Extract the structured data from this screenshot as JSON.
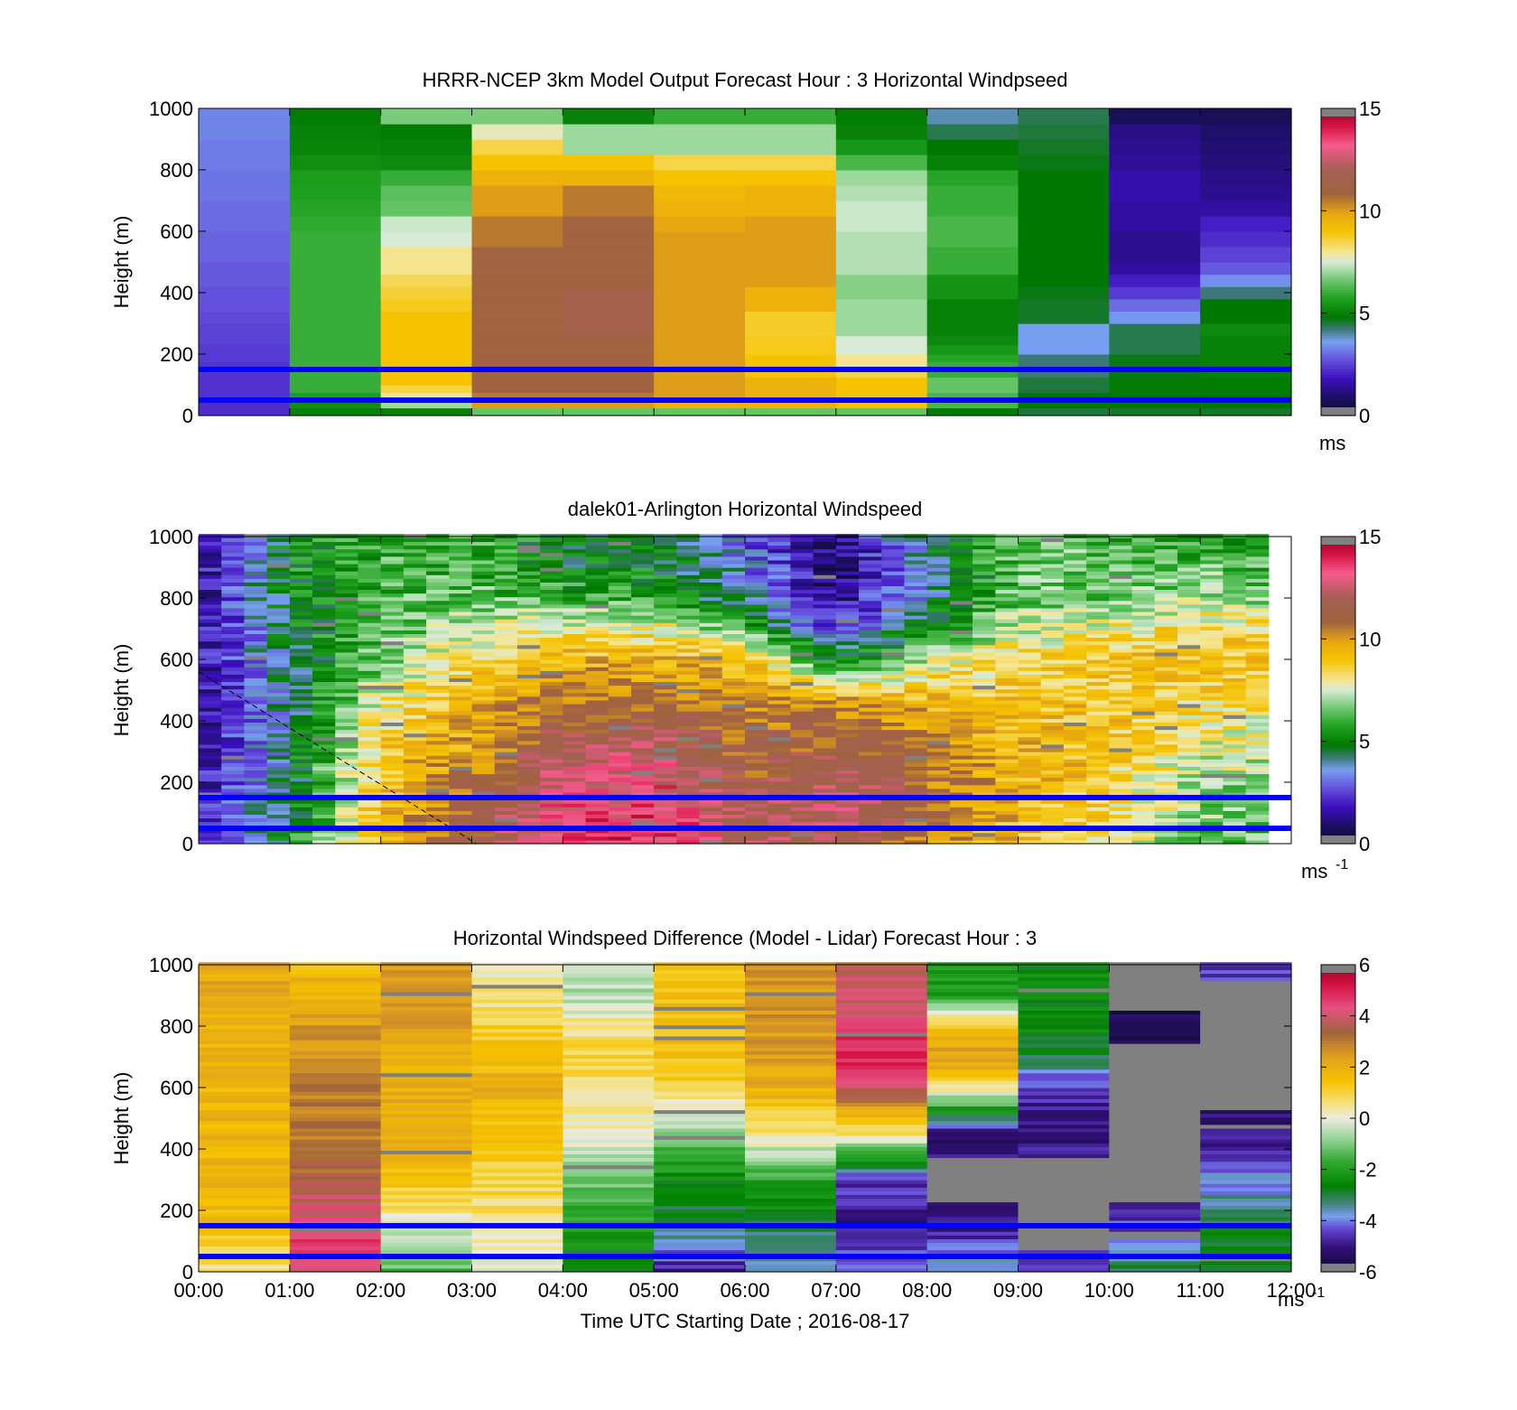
{
  "figure": {
    "xlabel": "Time UTC  Starting Date ; 2016-08-17",
    "x_ticks": [
      "00:00",
      "01:00",
      "02:00",
      "03:00",
      "04:00",
      "05:00",
      "06:00",
      "07:00",
      "08:00",
      "09:00",
      "10:00",
      "11:00",
      "12:00"
    ]
  },
  "chart_data": [
    {
      "type": "heatmap",
      "title": "HRRR-NCEP 3km Model Output   Forecast Hour : 3 Horizontal Windpseed",
      "ylabel": "Height (m)",
      "ylim": [
        0,
        1000
      ],
      "y_ticks": [
        0,
        200,
        400,
        600,
        800,
        1000
      ],
      "xlim_hours": [
        0,
        12
      ],
      "colorbar": {
        "min": 0,
        "max": 15,
        "ticks": [
          0,
          5,
          10,
          15
        ],
        "unit": "ms",
        "unit_sup": ""
      },
      "levels": [
        0,
        25,
        50,
        75,
        100,
        125,
        150,
        175,
        200,
        230,
        260,
        300,
        340,
        380,
        420,
        460,
        500,
        550,
        600,
        650,
        700,
        750,
        800,
        850,
        900,
        950,
        1000
      ],
      "hourly_profiles": [
        [
          2.2,
          2.2,
          2.3,
          2.3,
          2.3,
          2.3,
          2.3,
          2.4,
          2.4,
          2.5,
          2.5,
          2.6,
          2.7,
          2.7,
          2.8,
          2.8,
          2.9,
          2.9,
          3.0,
          3.0,
          3.1,
          3.1,
          3.2,
          3.2,
          3.3,
          3.3
        ],
        [
          5.0,
          5.3,
          5.7,
          6.0,
          6.0,
          6.0,
          6.0,
          6.0,
          6.0,
          6.0,
          6.0,
          6.0,
          6.0,
          6.0,
          6.0,
          6.0,
          6.0,
          6.0,
          5.9,
          5.8,
          5.7,
          5.6,
          5.3,
          5.1,
          5.0,
          4.9
        ],
        [
          5.0,
          7.0,
          8.0,
          8.5,
          9.0,
          9.0,
          9.0,
          9.0,
          9.0,
          9.0,
          9.0,
          9.0,
          8.8,
          8.6,
          8.4,
          8.0,
          8.0,
          7.5,
          7.4,
          6.5,
          6.4,
          6.0,
          5.2,
          5.0,
          4.9,
          6.7
        ],
        [
          6.5,
          10.0,
          10.5,
          11.0,
          11.0,
          11.0,
          11.0,
          11.0,
          11.0,
          11.0,
          11.0,
          11.0,
          11.0,
          11.0,
          11.0,
          11.0,
          11.0,
          10.5,
          10.5,
          10.0,
          10.0,
          9.5,
          9.0,
          8.5,
          7.7,
          6.7
        ],
        [
          6.5,
          10.0,
          10.5,
          11.0,
          11.0,
          11.0,
          11.0,
          11.0,
          11.0,
          11.0,
          11.5,
          11.5,
          11.5,
          11.5,
          11.0,
          11.0,
          11.0,
          11.0,
          11.0,
          10.5,
          10.5,
          9.5,
          9.0,
          7.0,
          7.0,
          5.0
        ],
        [
          6.5,
          9.5,
          10.0,
          10.0,
          10.0,
          10.0,
          10.0,
          10.0,
          10.0,
          10.0,
          10.0,
          10.0,
          10.0,
          10.0,
          10.0,
          10.0,
          10.0,
          10.0,
          9.8,
          9.5,
          9.3,
          9.0,
          8.5,
          7.0,
          7.0,
          6.0
        ],
        [
          6.5,
          9.5,
          9.5,
          9.5,
          9.5,
          9.0,
          9.0,
          9.0,
          8.8,
          8.8,
          8.7,
          8.7,
          9.5,
          9.5,
          10.0,
          10.0,
          10.0,
          10.0,
          10.0,
          9.5,
          9.5,
          9.0,
          8.5,
          7.0,
          7.0,
          6.0
        ],
        [
          6.5,
          9.0,
          9.0,
          9.0,
          9.0,
          8.5,
          8.0,
          8.0,
          7.5,
          7.5,
          7.0,
          7.0,
          7.0,
          6.8,
          6.8,
          7.2,
          7.2,
          7.2,
          7.4,
          7.4,
          7.2,
          7.0,
          6.2,
          5.5,
          5.0,
          4.9
        ],
        [
          4.9,
          6.2,
          6.2,
          6.5,
          6.5,
          6.0,
          6.0,
          5.8,
          5.5,
          5.2,
          5.0,
          5.0,
          5.0,
          5.4,
          5.4,
          6.0,
          6.0,
          6.2,
          6.2,
          6.0,
          6.0,
          5.8,
          5.0,
          4.8,
          4.4,
          3.9
        ],
        [
          4.5,
          4.8,
          4.8,
          4.5,
          4.5,
          4.2,
          4.2,
          4.2,
          3.6,
          3.6,
          3.6,
          4.6,
          4.6,
          4.7,
          4.8,
          4.8,
          4.8,
          4.8,
          4.8,
          4.8,
          4.8,
          4.8,
          4.7,
          4.6,
          4.5,
          4.4
        ],
        [
          4.6,
          4.8,
          4.8,
          4.9,
          4.9,
          4.7,
          4.7,
          4.7,
          4.4,
          4.4,
          4.4,
          3.5,
          3.0,
          2.4,
          2.0,
          1.5,
          1.3,
          1.3,
          1.5,
          1.5,
          1.6,
          1.6,
          1.4,
          1.3,
          1.2,
          0.7
        ],
        [
          4.6,
          4.8,
          4.8,
          4.9,
          4.9,
          5.0,
          5.0,
          5.0,
          5.0,
          5.0,
          5.2,
          4.8,
          4.8,
          4.2,
          3.4,
          2.8,
          2.5,
          2.2,
          2.0,
          1.5,
          1.3,
          1.2,
          1.1,
          1.0,
          0.9,
          0.7
        ]
      ],
      "reference_lines_m": [
        50,
        150
      ]
    },
    {
      "type": "heatmap",
      "title": "dalek01-Arlington  Horizontal Windspeed",
      "ylabel": "Height (m)",
      "ylim": [
        0,
        1000
      ],
      "y_ticks": [
        0,
        200,
        400,
        600,
        800,
        1000
      ],
      "xlim_hours": [
        0,
        11.85
      ],
      "colorbar": {
        "min": 0,
        "max": 15,
        "ticks": [
          0,
          5,
          10,
          15
        ],
        "unit": "ms",
        "unit_sup": "-1"
      },
      "layer_levels_m": [
        0,
        150,
        300,
        450,
        600,
        700,
        800,
        900,
        1000
      ],
      "layer_profiles_hourly": [
        [
          1.8,
          1.6,
          1.5,
          1.4,
          1.4,
          1.3,
          1.3,
          1.3,
          1.2
        ],
        [
          5.0,
          4.5,
          4.2,
          4.2,
          4.5,
          4.8,
          5.0,
          5.2,
          5.2
        ],
        [
          9.0,
          9.0,
          9.0,
          8.0,
          6.5,
          6.0,
          6.0,
          6.0,
          6.0
        ],
        [
          11.5,
          11.0,
          10.0,
          9.5,
          8.5,
          7.5,
          6.5,
          6.0,
          6.0
        ],
        [
          13.5,
          13.0,
          12.0,
          11.0,
          9.5,
          8.0,
          6.0,
          5.0,
          5.0
        ],
        [
          14.0,
          13.5,
          12.5,
          11.0,
          9.5,
          8.0,
          6.0,
          5.0,
          5.0
        ],
        [
          12.0,
          11.5,
          11.0,
          10.5,
          9.0,
          6.5,
          4.0,
          3.5,
          3.0
        ],
        [
          12.0,
          12.5,
          11.5,
          10.5,
          5.0,
          2.0,
          1.2,
          0.8,
          1.0
        ],
        [
          10.5,
          11.0,
          10.5,
          9.5,
          7.5,
          5.0,
          4.0,
          4.0,
          4.5
        ],
        [
          9.0,
          9.5,
          9.5,
          9.0,
          8.5,
          7.5,
          6.5,
          6.5,
          6.5
        ],
        [
          8.0,
          8.5,
          9.0,
          9.0,
          9.0,
          8.0,
          6.5,
          6.5,
          6.0
        ],
        [
          6.5,
          7.0,
          7.5,
          8.5,
          9.0,
          8.5,
          7.0,
          6.5,
          5.5
        ],
        [
          6.0,
          6.5,
          7.5,
          8.0,
          9.0,
          8.5,
          6.5,
          6.0,
          5.5
        ]
      ],
      "reference_lines_m": [
        50,
        150
      ]
    },
    {
      "type": "heatmap",
      "title": "Horizontal Windspeed Difference (Model - Lidar) Forecast Hour : 3",
      "ylabel": "Height (m)",
      "ylim": [
        0,
        1000
      ],
      "y_ticks": [
        0,
        200,
        400,
        600,
        800,
        1000
      ],
      "xlim_hours": [
        0,
        12
      ],
      "colorbar": {
        "min": -6,
        "max": 6,
        "ticks": [
          -6,
          -4,
          -2,
          0,
          2,
          4,
          6
        ],
        "unit": "ms",
        "unit_sup": "-1"
      },
      "layer_levels_m": [
        0,
        150,
        300,
        450,
        600,
        700,
        800,
        900,
        1000
      ],
      "layer_profiles_hourly": [
        [
          0.5,
          1.5,
          1.8,
          1.8,
          1.8,
          1.8,
          2.0,
          2.2,
          2.2
        ],
        [
          4.5,
          4.5,
          3.5,
          3.0,
          3.0,
          2.5,
          2.5,
          2.0,
          1.5
        ],
        [
          -1.5,
          0.0,
          1.5,
          2.0,
          2.0,
          2.0,
          2.5,
          2.5,
          2.5
        ],
        [
          0.0,
          0.5,
          1.0,
          1.5,
          2.0,
          1.5,
          1.0,
          0.5,
          0.0
        ],
        [
          -3.0,
          -2.0,
          -1.0,
          0.0,
          0.5,
          1.0,
          0.5,
          -0.5,
          -0.5
        ],
        [
          -5.0,
          -3.0,
          -2.5,
          -1.0,
          1.0,
          1.5,
          1.5,
          1.5,
          1.5
        ],
        [
          -3.5,
          -3.0,
          -2.0,
          0.5,
          2.0,
          2.5,
          2.5,
          2.5,
          2.5
        ],
        [
          -4.0,
          -5.0,
          -4.5,
          0.5,
          4.0,
          5.0,
          4.5,
          4.0,
          3.5
        ],
        [
          -3.5,
          -5.0,
          null,
          -5.0,
          0.5,
          2.5,
          1.5,
          -2.0,
          -2.0
        ],
        [
          -4.5,
          null,
          null,
          -5.0,
          -4.5,
          -3.0,
          -2.5,
          -2.5,
          -2.5
        ],
        [
          -3.0,
          -4.5,
          null,
          null,
          null,
          null,
          -5.5,
          null,
          null
        ],
        [
          -2.5,
          -3.0,
          -4.0,
          -5.0,
          null,
          null,
          null,
          null,
          -4.5
        ]
      ],
      "reference_lines_m": [
        50,
        150
      ]
    }
  ]
}
